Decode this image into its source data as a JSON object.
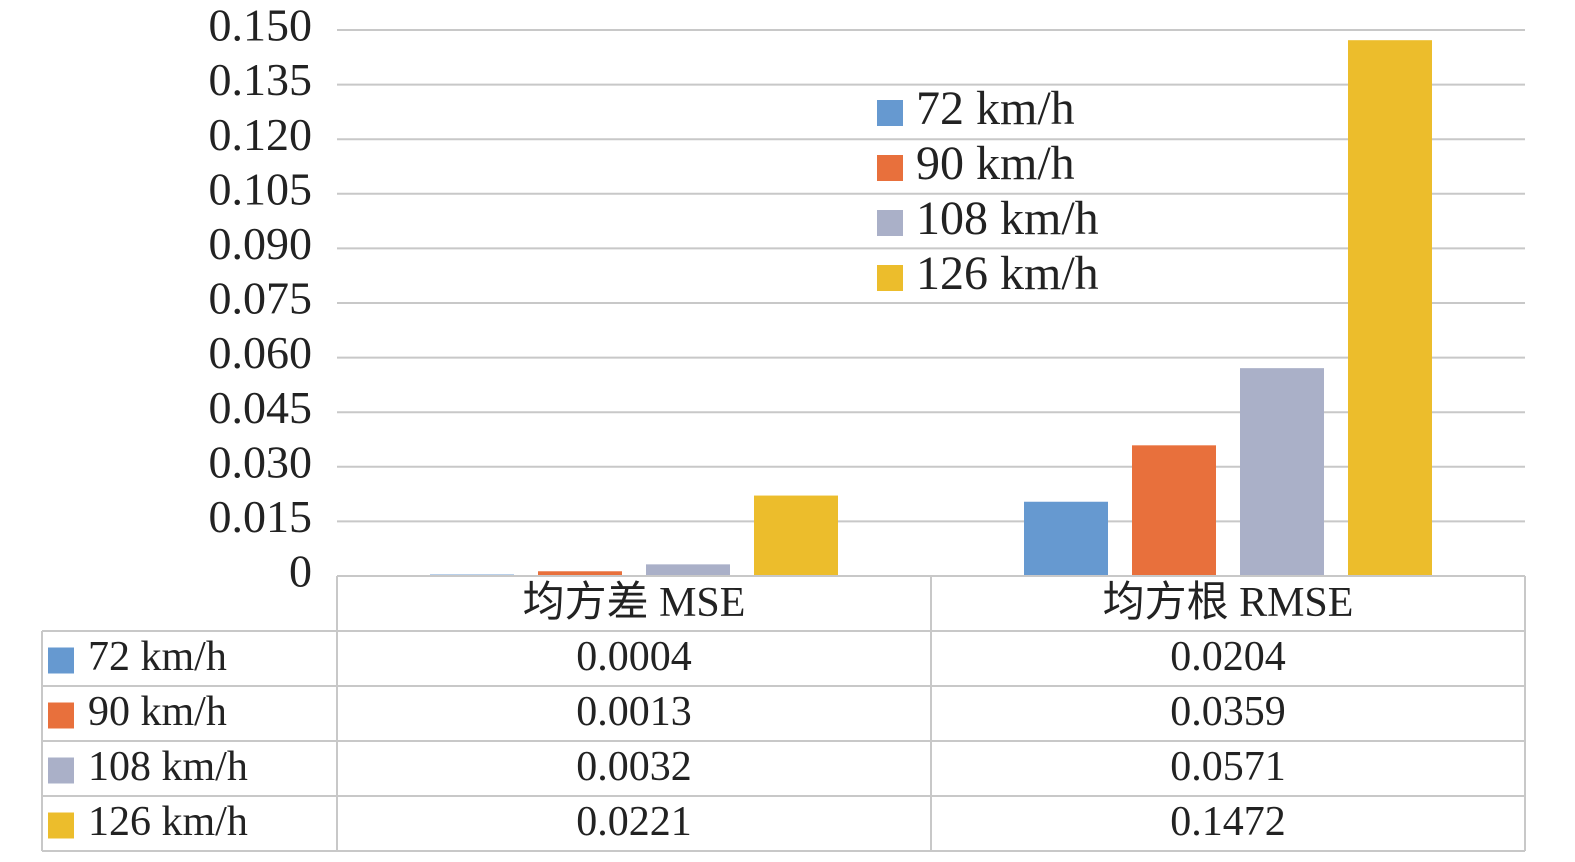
{
  "chart_data": {
    "type": "bar",
    "categories": [
      "均方差 MSE",
      "均方根 RMSE"
    ],
    "series": [
      {
        "name": "72 km/h",
        "color": "#6699d0",
        "values": [
          0.0004,
          0.0204
        ]
      },
      {
        "name": "90 km/h",
        "color": "#e8703c",
        "values": [
          0.0013,
          0.0359
        ]
      },
      {
        "name": "108 km/h",
        "color": "#aab0c8",
        "values": [
          0.0032,
          0.0571
        ]
      },
      {
        "name": "126 km/h",
        "color": "#ecbd2c",
        "values": [
          0.0221,
          0.1472
        ]
      }
    ],
    "ylim": [
      0,
      0.15
    ],
    "yticks": [
      0,
      {
        "value": 0.015,
        "label": "0.015"
      },
      {
        "value": 0.03,
        "label": "0.030"
      },
      {
        "value": 0.045,
        "label": "0.045"
      },
      {
        "value": 0.06,
        "label": "0.060"
      },
      {
        "value": 0.075,
        "label": "0.075"
      },
      {
        "value": 0.09,
        "label": "0.090"
      },
      {
        "value": 0.105,
        "label": "0.105"
      },
      {
        "value": 0.12,
        "label": "0.120"
      },
      {
        "value": 0.135,
        "label": "0.135"
      },
      {
        "value": 0.15,
        "label": "0.150"
      }
    ],
    "grid": true,
    "data_table": true
  }
}
